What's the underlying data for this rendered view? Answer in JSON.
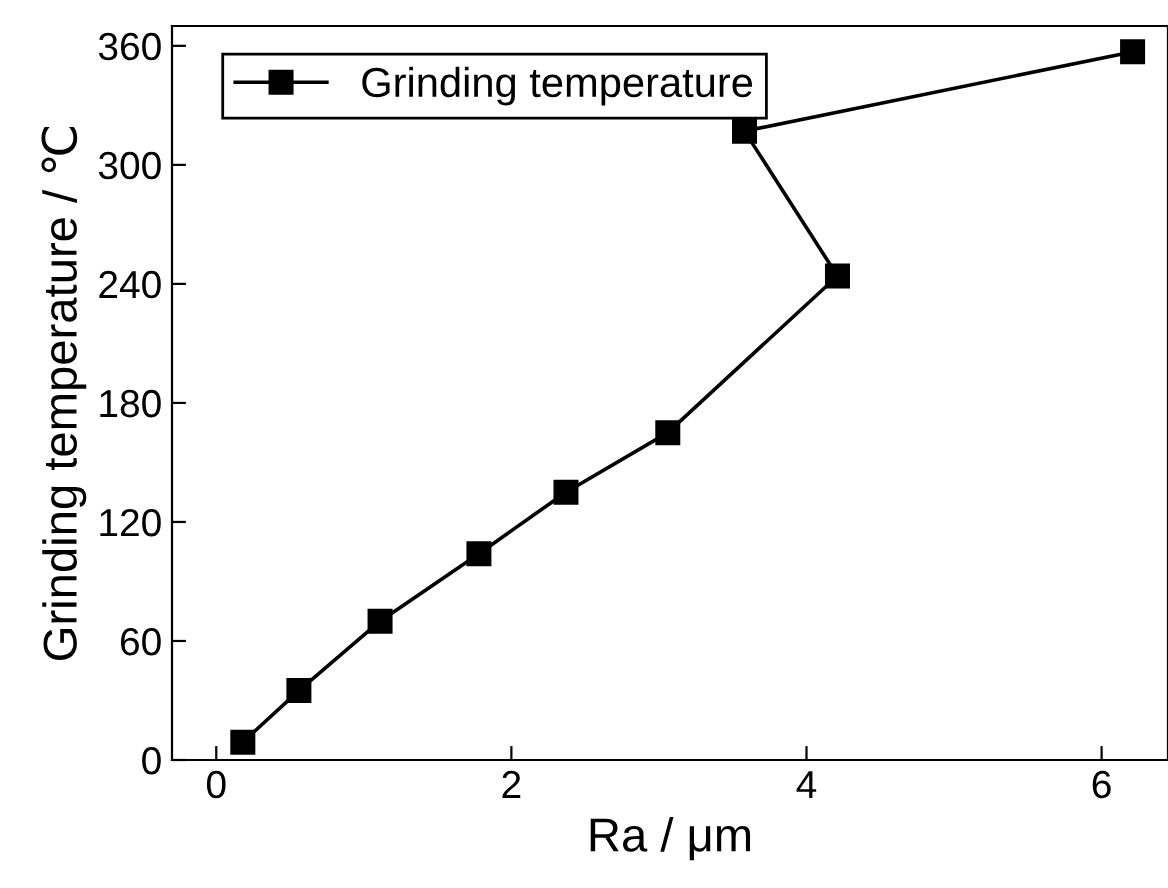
{
  "chart_data": {
    "type": "line",
    "xlabel": "Ra / μm",
    "ylabel": "Grinding temperature / ℃",
    "series": [
      {
        "name": "Grinding temperature",
        "color": "#000000",
        "x": [
          0.18,
          0.56,
          1.11,
          1.78,
          2.37,
          3.06,
          4.21,
          3.58,
          6.21
        ],
        "values": [
          9,
          35,
          70,
          104,
          135,
          165,
          244,
          317,
          357
        ]
      }
    ],
    "xlim": [
      -0.3,
      6.45
    ],
    "xticks": [
      0,
      2,
      4,
      6
    ],
    "ylim": [
      0,
      370
    ],
    "yticks": [
      0,
      60,
      120,
      180,
      240,
      300,
      360
    ],
    "marker": "square",
    "line_style": "solid",
    "grid": false,
    "legend": "top left"
  }
}
